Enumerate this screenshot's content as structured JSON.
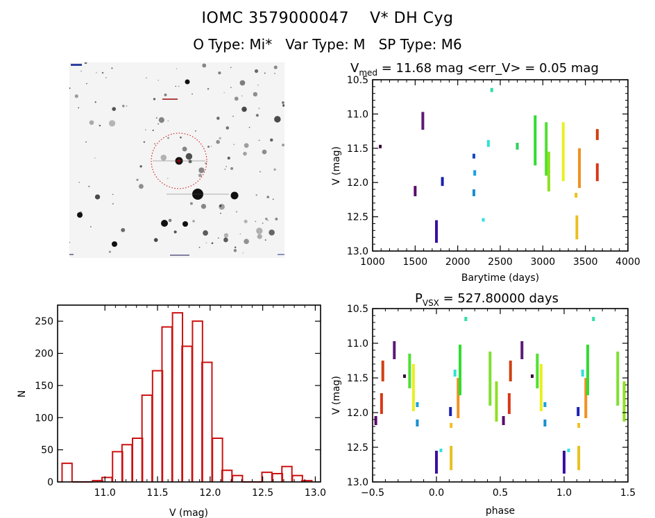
{
  "header": {
    "title": "IOMC 3579000047    V* DH Cyg",
    "subtitle": "O Type: Mi*   Var Type: M   SP Type: M6"
  },
  "finder_chart": {
    "description": "DSS-like grayscale star field with red dashed circle around target",
    "target_marker_color": "#cc0000",
    "compass_icon": "north-east-arrows"
  },
  "chart_data": [
    {
      "id": "lightcurve",
      "type": "scatter",
      "title_main": "V",
      "title_sub": "med",
      "title_rest": " = 11.68 mag <err_V> = 0.05 mag",
      "xlabel": "Barytime (days)",
      "ylabel": "V (mag)",
      "xlim": [
        1000,
        4000
      ],
      "ylim": [
        13.0,
        10.5
      ],
      "y_inverted": true,
      "xticks": [
        1000,
        1500,
        2000,
        2500,
        3000,
        3500,
        4000
      ],
      "xtick_labels": [
        "1000",
        "1500",
        "2000",
        "2500",
        "3000",
        "3500",
        "4000"
      ],
      "yticks": [
        10.5,
        11.0,
        11.5,
        12.0,
        12.5,
        13.0
      ],
      "ytick_labels": [
        "10.5",
        "11.0",
        "11.5",
        "12.0",
        "12.5",
        "13.0"
      ],
      "grid": false,
      "segments": [
        {
          "x": 1090,
          "y0": 11.45,
          "y1": 11.5,
          "color": "#3a0a3a"
        },
        {
          "x": 1500,
          "y0": 12.05,
          "y1": 12.2,
          "color": "#5a0a6a"
        },
        {
          "x": 1590,
          "y0": 10.97,
          "y1": 11.23,
          "color": "#5a1a7a"
        },
        {
          "x": 1750,
          "y0": 12.55,
          "y1": 12.88,
          "color": "#3a10a0"
        },
        {
          "x": 1820,
          "y0": 11.92,
          "y1": 12.05,
          "color": "#1a20b0"
        },
        {
          "x": 2190,
          "y0": 11.58,
          "y1": 11.65,
          "color": "#1848c0"
        },
        {
          "x": 2200,
          "y0": 11.82,
          "y1": 11.9,
          "color": "#18a0e0"
        },
        {
          "x": 2190,
          "y0": 12.1,
          "y1": 12.2,
          "color": "#1890d0"
        },
        {
          "x": 2300,
          "y0": 12.52,
          "y1": 12.57,
          "color": "#30e0e0"
        },
        {
          "x": 2360,
          "y0": 11.38,
          "y1": 11.48,
          "color": "#30e0d8"
        },
        {
          "x": 2400,
          "y0": 10.62,
          "y1": 10.68,
          "color": "#30e0a0"
        },
        {
          "x": 2700,
          "y0": 11.42,
          "y1": 11.52,
          "color": "#30d060"
        },
        {
          "x": 2910,
          "y0": 11.02,
          "y1": 11.75,
          "color": "#30dc30"
        },
        {
          "x": 3040,
          "y0": 11.12,
          "y1": 11.9,
          "color": "#50e030"
        },
        {
          "x": 3070,
          "y0": 11.55,
          "y1": 12.13,
          "color": "#90e020"
        },
        {
          "x": 3240,
          "y0": 11.12,
          "y1": 11.98,
          "color": "#e8f020"
        },
        {
          "x": 3390,
          "y0": 12.15,
          "y1": 12.22,
          "color": "#f0c020"
        },
        {
          "x": 3400,
          "y0": 12.48,
          "y1": 12.83,
          "color": "#e8c020"
        },
        {
          "x": 3430,
          "y0": 11.5,
          "y1": 12.08,
          "color": "#f09020"
        },
        {
          "x": 3640,
          "y0": 11.22,
          "y1": 11.38,
          "color": "#d04010"
        },
        {
          "x": 3640,
          "y0": 11.72,
          "y1": 11.98,
          "color": "#d83818"
        }
      ]
    },
    {
      "id": "histogram",
      "type": "bar",
      "title": "",
      "xlabel": "V (mag)",
      "ylabel": "N",
      "xlim": [
        10.55,
        13.05
      ],
      "ylim": [
        0,
        275
      ],
      "xticks": [
        11.0,
        11.5,
        12.0,
        12.5,
        13.0
      ],
      "xtick_labels": [
        "11.0",
        "11.5",
        "12.0",
        "12.5",
        "13.0"
      ],
      "yticks": [
        0,
        50,
        100,
        150,
        200,
        250
      ],
      "ytick_labels": [
        "0",
        "50",
        "100",
        "150",
        "200",
        "250"
      ],
      "bar_color": "#cc1111",
      "bin_width": 0.095,
      "bin_centers": [
        10.64,
        10.74,
        10.83,
        10.93,
        11.02,
        11.12,
        11.21,
        11.31,
        11.4,
        11.5,
        11.59,
        11.69,
        11.78,
        11.88,
        11.97,
        12.07,
        12.16,
        12.26,
        12.35,
        12.45,
        12.54,
        12.64,
        12.73,
        12.83,
        12.92
      ],
      "values": [
        29,
        0,
        0,
        2,
        7,
        47,
        58,
        68,
        135,
        173,
        241,
        263,
        211,
        250,
        186,
        68,
        18,
        10,
        0,
        0,
        15,
        13,
        24,
        10,
        2
      ]
    },
    {
      "id": "phased",
      "type": "scatter",
      "title_main": "P",
      "title_sub": "VSX",
      "title_rest": " = 527.80000 days",
      "xlabel": "phase",
      "ylabel": "V (mag)",
      "xlim": [
        -0.5,
        1.5
      ],
      "ylim": [
        13.0,
        10.5
      ],
      "y_inverted": true,
      "xticks": [
        -0.5,
        0.0,
        0.5,
        1.0,
        1.5
      ],
      "xtick_labels": [
        "−0.5",
        "0.0",
        "0.5",
        "1.0",
        "1.5"
      ],
      "yticks": [
        10.5,
        11.0,
        11.5,
        12.0,
        12.5,
        13.0
      ],
      "ytick_labels": [
        "10.5",
        "11.0",
        "11.5",
        "12.0",
        "12.5",
        "13.0"
      ],
      "grid": false,
      "period_days": 527.8,
      "segments": [
        {
          "x": -0.475,
          "y0": 12.05,
          "y1": 12.18,
          "color": "#5a0a6a"
        },
        {
          "x": -0.42,
          "y0": 11.25,
          "y1": 11.55,
          "color": "#d04010"
        },
        {
          "x": -0.43,
          "y0": 11.72,
          "y1": 12.02,
          "color": "#d83818"
        },
        {
          "x": -0.33,
          "y0": 10.97,
          "y1": 11.23,
          "color": "#5a1a7a"
        },
        {
          "x": -0.25,
          "y0": 11.45,
          "y1": 11.5,
          "color": "#3a0a3a"
        },
        {
          "x": -0.21,
          "y0": 11.15,
          "y1": 11.65,
          "color": "#50e030"
        },
        {
          "x": -0.18,
          "y0": 11.3,
          "y1": 11.98,
          "color": "#e8f020"
        },
        {
          "x": -0.15,
          "y0": 11.85,
          "y1": 11.92,
          "color": "#18a0e0"
        },
        {
          "x": -0.15,
          "y0": 12.1,
          "y1": 12.2,
          "color": "#1890d0"
        },
        {
          "x": 0.0,
          "y0": 12.55,
          "y1": 12.88,
          "color": "#3a10a0"
        },
        {
          "x": 0.035,
          "y0": 12.52,
          "y1": 12.57,
          "color": "#30e0e0"
        },
        {
          "x": 0.11,
          "y0": 11.92,
          "y1": 12.05,
          "color": "#1a20b0"
        },
        {
          "x": 0.115,
          "y0": 12.15,
          "y1": 12.22,
          "color": "#f0c020"
        },
        {
          "x": 0.115,
          "y0": 12.48,
          "y1": 12.83,
          "color": "#e8c020"
        },
        {
          "x": 0.145,
          "y0": 11.38,
          "y1": 11.48,
          "color": "#30e0d8"
        },
        {
          "x": 0.17,
          "y0": 11.5,
          "y1": 12.08,
          "color": "#f09020"
        },
        {
          "x": 0.185,
          "y0": 11.02,
          "y1": 11.75,
          "color": "#30dc30"
        },
        {
          "x": 0.23,
          "y0": 10.62,
          "y1": 10.68,
          "color": "#30e0a0"
        },
        {
          "x": 0.42,
          "y0": 11.12,
          "y1": 11.9,
          "color": "#7ee030"
        },
        {
          "x": 0.47,
          "y0": 11.55,
          "y1": 12.13,
          "color": "#90e020"
        },
        {
          "x": 0.525,
          "y0": 12.05,
          "y1": 12.18,
          "color": "#5a0a6a"
        },
        {
          "x": 0.58,
          "y0": 11.25,
          "y1": 11.55,
          "color": "#d04010"
        },
        {
          "x": 0.57,
          "y0": 11.72,
          "y1": 12.02,
          "color": "#d83818"
        },
        {
          "x": 0.67,
          "y0": 10.97,
          "y1": 11.23,
          "color": "#5a1a7a"
        },
        {
          "x": 0.75,
          "y0": 11.45,
          "y1": 11.5,
          "color": "#3a0a3a"
        },
        {
          "x": 0.79,
          "y0": 11.15,
          "y1": 11.65,
          "color": "#50e030"
        },
        {
          "x": 0.82,
          "y0": 11.3,
          "y1": 11.98,
          "color": "#e8f020"
        },
        {
          "x": 0.85,
          "y0": 11.85,
          "y1": 11.92,
          "color": "#18a0e0"
        },
        {
          "x": 0.85,
          "y0": 12.1,
          "y1": 12.2,
          "color": "#1890d0"
        },
        {
          "x": 1.0,
          "y0": 12.55,
          "y1": 12.88,
          "color": "#3a10a0"
        },
        {
          "x": 1.035,
          "y0": 12.52,
          "y1": 12.57,
          "color": "#30e0e0"
        },
        {
          "x": 1.11,
          "y0": 11.92,
          "y1": 12.05,
          "color": "#1a20b0"
        },
        {
          "x": 1.115,
          "y0": 12.15,
          "y1": 12.22,
          "color": "#f0c020"
        },
        {
          "x": 1.115,
          "y0": 12.48,
          "y1": 12.83,
          "color": "#e8c020"
        },
        {
          "x": 1.145,
          "y0": 11.38,
          "y1": 11.48,
          "color": "#30e0d8"
        },
        {
          "x": 1.17,
          "y0": 11.5,
          "y1": 12.08,
          "color": "#f09020"
        },
        {
          "x": 1.185,
          "y0": 11.02,
          "y1": 11.75,
          "color": "#30dc30"
        },
        {
          "x": 1.23,
          "y0": 10.62,
          "y1": 10.68,
          "color": "#30e0a0"
        },
        {
          "x": 1.42,
          "y0": 11.12,
          "y1": 11.9,
          "color": "#7ee030"
        },
        {
          "x": 1.47,
          "y0": 11.55,
          "y1": 12.13,
          "color": "#90e020"
        }
      ]
    }
  ]
}
